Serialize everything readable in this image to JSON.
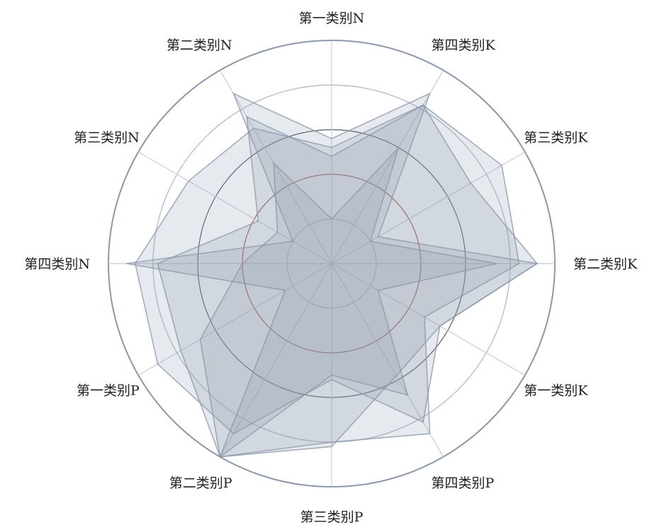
{
  "chart_data": {
    "type": "radar",
    "title": "",
    "categories": [
      "第一类别N",
      "第四类别K",
      "第三类别K",
      "第二类别K",
      "第一类别K",
      "第四类别P",
      "第三类别P",
      "第二类别P",
      "第一类别P",
      "第四类别N",
      "第三类别N",
      "第二类别N"
    ],
    "rlim": [
      0,
      5
    ],
    "ring_count": 5,
    "grid": true,
    "legend": "none",
    "series": [
      {
        "values": [
          2.6,
          4.1,
          3.6,
          4.6,
          2.8,
          4.1,
          2.6,
          4.4,
          4.5,
          4.4,
          3.7,
          3.5
        ]
      },
      {
        "values": [
          2.4,
          4.1,
          4.4,
          4.2,
          2.4,
          4.4,
          4.0,
          5.0,
          3.9,
          3.9,
          1.9,
          3.8
        ]
      },
      {
        "values": [
          1.0,
          3.0,
          1.0,
          3.7,
          1.2,
          3.4,
          2.5,
          5.0,
          3.4,
          2.0,
          1.4,
          2.6
        ]
      },
      {
        "values": [
          2.8,
          4.4,
          1.2,
          4.6,
          2.8,
          2.9,
          4.1,
          5.0,
          1.2,
          4.6,
          1.0,
          4.4
        ]
      }
    ],
    "colors": {
      "fill": "#8e99ae",
      "stroke": "#8a96aa",
      "grid_outer": "#8c97ab",
      "grid_inner": "#b8bfcc",
      "grid_dark": "#555a63",
      "grid_red": "#a85055"
    }
  }
}
